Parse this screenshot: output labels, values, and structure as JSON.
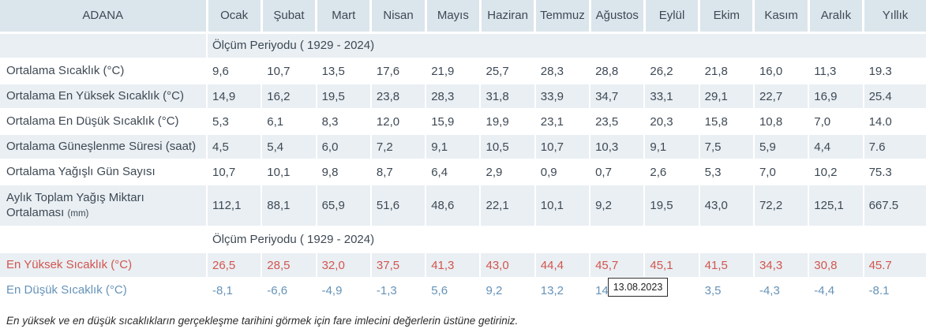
{
  "table": {
    "station": "ADANA",
    "months": [
      "Ocak",
      "Şubat",
      "Mart",
      "Nisan",
      "Mayıs",
      "Haziran",
      "Temmuz",
      "Ağustos",
      "Eylül",
      "Ekim",
      "Kasım",
      "Aralık",
      "Yıllık"
    ],
    "period_label_1": "Ölçüm Periyodu ( 1929 - 2024)",
    "period_label_2": "Ölçüm Periyodu ( 1929 - 2024)",
    "rows": [
      {
        "label": "Ortalama Sıcaklık (°C)",
        "striped": false,
        "values": [
          "9,6",
          "10,7",
          "13,5",
          "17,6",
          "21,9",
          "25,7",
          "28,3",
          "28,8",
          "26,2",
          "21,8",
          "16,0",
          "11,3",
          "19.3"
        ]
      },
      {
        "label": "Ortalama En Yüksek Sıcaklık (°C)",
        "striped": true,
        "values": [
          "14,9",
          "16,2",
          "19,5",
          "23,8",
          "28,3",
          "31,8",
          "33,9",
          "34,7",
          "33,1",
          "29,1",
          "22,7",
          "16,9",
          "25.4"
        ]
      },
      {
        "label": "Ortalama En Düşük Sıcaklık (°C)",
        "striped": false,
        "values": [
          "5,3",
          "6,1",
          "8,3",
          "12,0",
          "15,9",
          "19,9",
          "23,1",
          "23,5",
          "20,3",
          "15,8",
          "10,8",
          "7,0",
          "14.0"
        ]
      },
      {
        "label": "Ortalama Güneşlenme Süresi (saat)",
        "striped": true,
        "values": [
          "4,5",
          "5,4",
          "6,0",
          "7,2",
          "9,1",
          "10,5",
          "10,7",
          "10,3",
          "9,1",
          "7,5",
          "5,9",
          "4,4",
          "7.6"
        ]
      },
      {
        "label": "Ortalama Yağışlı Gün Sayısı",
        "striped": false,
        "values": [
          "10,7",
          "10,1",
          "9,8",
          "8,7",
          "6,4",
          "2,9",
          "0,9",
          "0,7",
          "2,6",
          "5,3",
          "7,0",
          "10,2",
          "75.3"
        ]
      },
      {
        "label": "Aylık Toplam Yağış Miktarı Ortalaması",
        "label_note": "(mm)",
        "striped": true,
        "tall": true,
        "values": [
          "112,1",
          "88,1",
          "65,9",
          "51,6",
          "48,6",
          "22,1",
          "10,1",
          "9,2",
          "19,5",
          "43,0",
          "72,2",
          "125,1",
          "667.5"
        ]
      }
    ],
    "extremes_rows": [
      {
        "label": "En Yüksek Sıcaklık (°C)",
        "color": "red",
        "striped": true,
        "hoverable": true,
        "values": [
          "26,5",
          "28,5",
          "32,0",
          "37,5",
          "41,3",
          "43,0",
          "44,4",
          "45,7",
          "45,1",
          "41,5",
          "34,3",
          "30,8",
          "45.7"
        ]
      },
      {
        "label": "En Düşük Sıcaklık (°C)",
        "color": "blue",
        "striped": false,
        "hoverable": true,
        "values": [
          "-8,1",
          "-6,6",
          "-4,9",
          "-1,3",
          "5,6",
          "9,2",
          "13,2",
          "14",
          "",
          "3,5",
          "-4,3",
          "-4,4",
          "-8.1"
        ]
      }
    ]
  },
  "tooltip": {
    "text": "13.08.2023"
  },
  "footer_note": "En yüksek ve en düşük sıcaklıkların gerçekleşme tarihini görmek için fare imlecini değerlerin üstüne getiriniz.",
  "colors": {
    "header_bg": "#dbe5ec",
    "stripe_bg": "#e9eff3",
    "text_dark": "#3e4954",
    "max_temp_red": "#d2554f",
    "min_temp_blue": "#6593b8"
  }
}
